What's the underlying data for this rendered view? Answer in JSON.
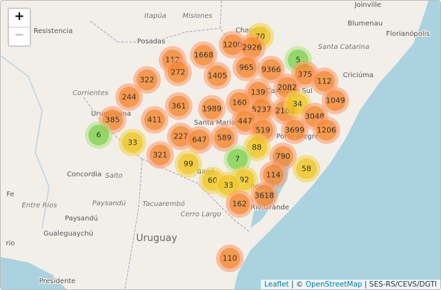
{
  "zoom_controls": {
    "zoom_in": "+",
    "zoom_out": "−"
  },
  "places": [
    "Joinville",
    "Blumenau",
    "Florianópolis",
    "Santa Catarina",
    "Criciúma",
    "Itapúa",
    "Misiones",
    "Resistencia",
    "Posadas",
    "Chapecó",
    "Corrientes",
    "Uruguaiana",
    "Caxias do Sul",
    "Santa Maria",
    "Porto Alegre",
    "Bagé",
    "Pelotas",
    "Rio Grande",
    "Concordia",
    "Salto",
    "Fe",
    "Entre Ríos",
    "Paysandú",
    "Tacuarembó",
    "Cerro Largo",
    "Paysandú",
    "Gualeguaychú",
    "Uruguay",
    "rio",
    "Presidente"
  ],
  "clusters": [
    1200,
    70,
    2926,
    1668,
    112,
    272,
    5,
    965,
    9366,
    1405,
    375,
    322,
    112,
    2082,
    139,
    244,
    1049,
    160,
    361,
    1989,
    5237,
    2168,
    34,
    3048,
    385,
    411,
    447,
    519,
    3699,
    1206,
    6,
    33,
    227,
    647,
    589,
    88,
    321,
    7,
    790,
    99,
    58,
    114,
    60,
    92,
    33,
    3618,
    162,
    110
  ],
  "attribution": [
    "Leaflet",
    "|",
    "©",
    "OpenStreetMap",
    "|",
    "SES-RS/CEVS/DGTI"
  ]
}
